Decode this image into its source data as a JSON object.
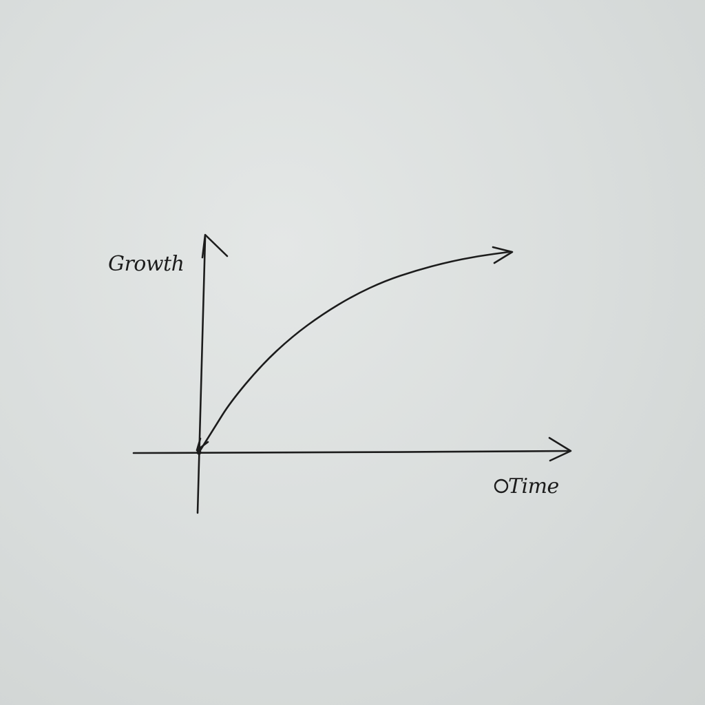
{
  "chart_data": {
    "type": "line",
    "title": "",
    "xlabel": "Time",
    "ylabel": "Growth",
    "grid": false,
    "legend": "none",
    "axis_ticks": "none",
    "shape": "concave increasing curve from origin, leveling off",
    "series": [
      {
        "x": [
          0,
          0.05,
          0.1,
          0.2,
          0.3,
          0.4,
          0.5,
          0.6,
          0.7,
          0.8,
          0.9,
          1.0
        ],
        "values": [
          0,
          0.12,
          0.24,
          0.42,
          0.56,
          0.67,
          0.76,
          0.83,
          0.88,
          0.92,
          0.95,
          0.97
        ]
      }
    ],
    "xlim": [
      0,
      1.2
    ],
    "ylim": [
      0,
      1.1
    ]
  },
  "colors": {
    "ink": "#1c1c1c",
    "paper": "#dcdfde"
  }
}
